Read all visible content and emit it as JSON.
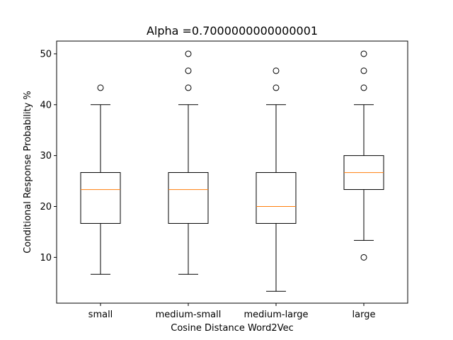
{
  "chart_data": {
    "type": "box",
    "title": "Alpha =0.7000000000000001",
    "xlabel": "Cosine Distance Word2Vec",
    "ylabel": "Conditional Response Probability %",
    "categories": [
      "small",
      "medium-small",
      "medium-large",
      "large"
    ],
    "ylim": [
      1.0,
      52.5
    ],
    "yticks": [
      10,
      20,
      30,
      40,
      50
    ],
    "grid": false,
    "colors": {
      "box": "#000000",
      "median": "#ff7f0e",
      "flier": "#000000"
    },
    "boxes": [
      {
        "category": "small",
        "whisker_low": 6.67,
        "q1": 16.67,
        "median": 23.33,
        "q3": 26.67,
        "whisker_high": 40.0,
        "fliers": [
          43.33
        ]
      },
      {
        "category": "medium-small",
        "whisker_low": 6.67,
        "q1": 16.67,
        "median": 23.33,
        "q3": 26.67,
        "whisker_high": 40.0,
        "fliers": [
          43.33,
          46.67,
          50.0
        ]
      },
      {
        "category": "medium-large",
        "whisker_low": 3.33,
        "q1": 16.67,
        "median": 20.0,
        "q3": 26.67,
        "whisker_high": 40.0,
        "fliers": [
          43.33,
          46.67
        ]
      },
      {
        "category": "large",
        "whisker_low": 13.33,
        "q1": 23.33,
        "median": 26.67,
        "q3": 30.0,
        "whisker_high": 40.0,
        "fliers": [
          10.0,
          43.33,
          46.67,
          50.0
        ]
      }
    ]
  }
}
